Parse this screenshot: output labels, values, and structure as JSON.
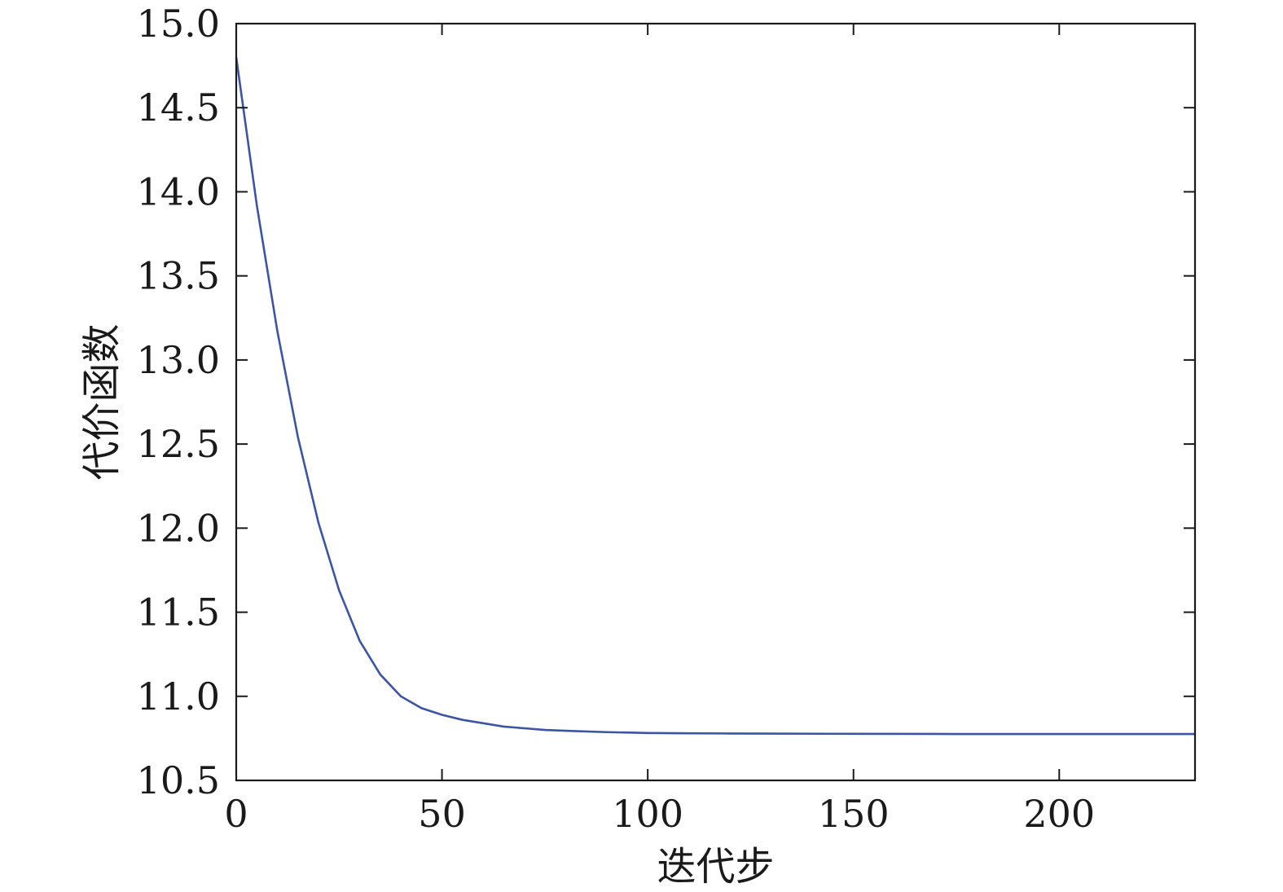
{
  "chart_data": {
    "type": "line",
    "title": "",
    "xlabel": "迭代步",
    "ylabel": "代价函数",
    "xlim": [
      0,
      233
    ],
    "ylim": [
      10.5,
      15.0
    ],
    "xticks": [
      0,
      50,
      100,
      150,
      200
    ],
    "xtick_labels": [
      "0",
      "50",
      "100",
      "150",
      "200"
    ],
    "yticks": [
      10.5,
      11.0,
      11.5,
      12.0,
      12.5,
      13.0,
      13.5,
      14.0,
      14.5,
      15.0
    ],
    "ytick_labels": [
      "10.5",
      "11.0",
      "11.5",
      "12.0",
      "12.5",
      "13.0",
      "13.5",
      "14.0",
      "14.5",
      "15.0"
    ],
    "grid": false,
    "series": [
      {
        "color": "#3b55a4",
        "x": [
          0,
          5,
          10,
          15,
          20,
          25,
          30,
          35,
          40,
          45,
          50,
          55,
          60,
          65,
          70,
          75,
          80,
          90,
          100,
          110,
          120,
          130,
          150,
          175,
          200,
          233
        ],
        "y": [
          14.8,
          13.92,
          13.17,
          12.54,
          12.03,
          11.63,
          11.33,
          11.13,
          11.0,
          10.93,
          10.89,
          10.86,
          10.84,
          10.82,
          10.81,
          10.8,
          10.795,
          10.787,
          10.782,
          10.78,
          10.779,
          10.778,
          10.777,
          10.776,
          10.776,
          10.776
        ]
      }
    ]
  }
}
